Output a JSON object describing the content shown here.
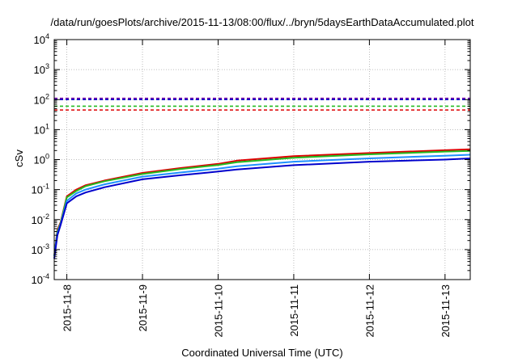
{
  "chart_data": {
    "type": "line",
    "title": "/data/run/goesPlots/archive/2015-11-13/08:00/flux/../bryn/5daysEarthDataAccumulated.plot",
    "xlabel": "Coordinated Universal Time (UTC)",
    "ylabel": "cSv",
    "y_scale": "log",
    "ylim_exp": [
      -4,
      4
    ],
    "y_ticks": [
      {
        "base": "10",
        "exp": "-4",
        "value": 0.0001
      },
      {
        "base": "10",
        "exp": "-3",
        "value": 0.001
      },
      {
        "base": "10",
        "exp": "-2",
        "value": 0.01
      },
      {
        "base": "10",
        "exp": "-1",
        "value": 0.1
      },
      {
        "base": "10",
        "exp": "0",
        "value": 1
      },
      {
        "base": "10",
        "exp": "1",
        "value": 10
      },
      {
        "base": "10",
        "exp": "2",
        "value": 100
      },
      {
        "base": "10",
        "exp": "3",
        "value": 1000
      },
      {
        "base": "10",
        "exp": "4",
        "value": 10000
      }
    ],
    "xlim": [
      "2015-11-07 20:00",
      "2015-11-13 08:00"
    ],
    "x_ticks": [
      "2015-11-8",
      "2015-11-9",
      "2015-11-10",
      "2015-11-11",
      "2015-11-12",
      "2015-11-13"
    ],
    "x_tick_dates": [
      "2015-11-08 00:00",
      "2015-11-09 00:00",
      "2015-11-10 00:00",
      "2015-11-11 00:00",
      "2015-11-12 00:00",
      "2015-11-13 00:00"
    ],
    "grid": true,
    "legend": "none",
    "thresholds": [
      {
        "value": 110,
        "color": "#7700aa"
      },
      {
        "value": 100,
        "color": "#0000cc"
      },
      {
        "value": 60,
        "color": "#22bb22"
      },
      {
        "value": 45,
        "color": "#dd0000"
      }
    ],
    "series": [
      {
        "color": "#dd0000",
        "x": [
          "2015-11-07 20:00",
          "2015-11-07 21:00",
          "2015-11-07 22:00",
          "2015-11-08 00:00",
          "2015-11-08 03:00",
          "2015-11-08 06:00",
          "2015-11-08 12:00",
          "2015-11-09 00:00",
          "2015-11-09 12:00",
          "2015-11-10 00:00",
          "2015-11-10 06:00",
          "2015-11-11 00:00",
          "2015-11-12 00:00",
          "2015-11-13 00:00",
          "2015-11-13 08:00"
        ],
        "y": [
          0.0006,
          0.0045,
          0.008,
          0.06,
          0.1,
          0.14,
          0.2,
          0.36,
          0.52,
          0.72,
          0.92,
          1.3,
          1.65,
          2.05,
          2.2
        ]
      },
      {
        "color": "#22bb22",
        "x": [
          "2015-11-07 20:00",
          "2015-11-07 21:00",
          "2015-11-07 22:00",
          "2015-11-08 00:00",
          "2015-11-08 03:00",
          "2015-11-08 06:00",
          "2015-11-08 12:00",
          "2015-11-09 00:00",
          "2015-11-09 12:00",
          "2015-11-10 00:00",
          "2015-11-10 06:00",
          "2015-11-11 00:00",
          "2015-11-12 00:00",
          "2015-11-13 00:00",
          "2015-11-13 08:00"
        ],
        "y": [
          0.0006,
          0.004,
          0.0075,
          0.055,
          0.09,
          0.13,
          0.19,
          0.33,
          0.48,
          0.66,
          0.82,
          1.15,
          1.5,
          1.85,
          1.95
        ]
      },
      {
        "color": "#1e90ff",
        "x": [
          "2015-11-07 20:00",
          "2015-11-07 21:00",
          "2015-11-07 22:00",
          "2015-11-08 00:00",
          "2015-11-08 03:00",
          "2015-11-08 06:00",
          "2015-11-08 12:00",
          "2015-11-09 00:00",
          "2015-11-09 12:00",
          "2015-11-10 00:00",
          "2015-11-10 06:00",
          "2015-11-11 00:00",
          "2015-11-12 00:00",
          "2015-11-13 00:00",
          "2015-11-13 08:00"
        ],
        "y": [
          0.0006,
          0.0035,
          0.007,
          0.042,
          0.075,
          0.1,
          0.15,
          0.27,
          0.37,
          0.5,
          0.6,
          0.85,
          1.1,
          1.35,
          1.45
        ]
      },
      {
        "color": "#0000cc",
        "x": [
          "2015-11-07 20:00",
          "2015-11-07 21:00",
          "2015-11-07 22:00",
          "2015-11-08 00:00",
          "2015-11-08 03:00",
          "2015-11-08 06:00",
          "2015-11-08 12:00",
          "2015-11-09 00:00",
          "2015-11-09 12:00",
          "2015-11-10 00:00",
          "2015-11-10 06:00",
          "2015-11-11 00:00",
          "2015-11-12 00:00",
          "2015-11-13 00:00",
          "2015-11-13 08:00"
        ],
        "y": [
          0.0005,
          0.003,
          0.0065,
          0.035,
          0.06,
          0.08,
          0.12,
          0.22,
          0.3,
          0.4,
          0.47,
          0.65,
          0.85,
          1.0,
          1.1
        ]
      }
    ]
  }
}
